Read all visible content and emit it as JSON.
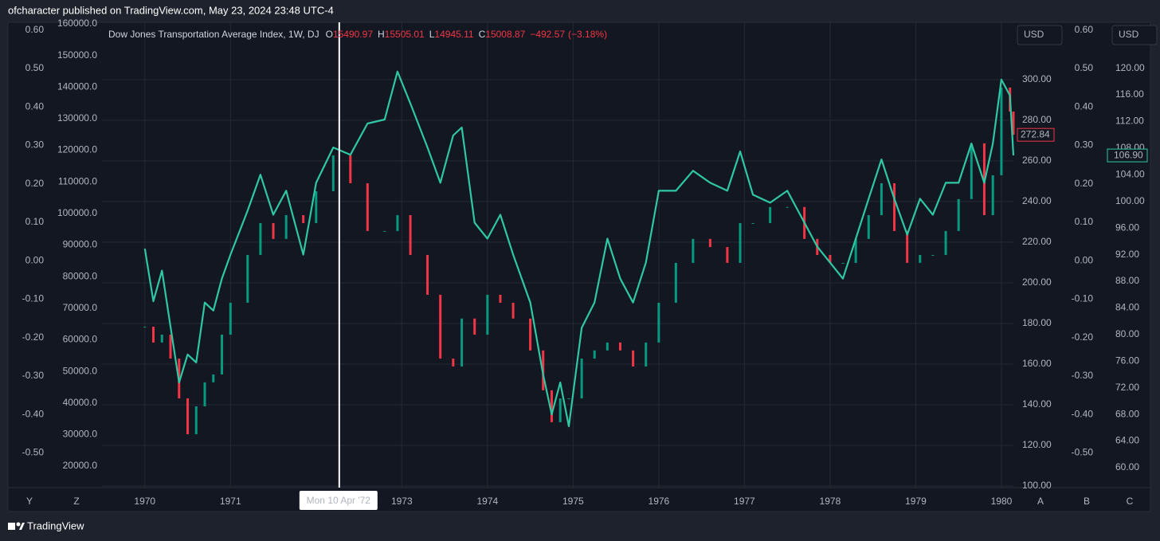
{
  "header": {
    "publisher": "ofcharacter published on TradingView.com, May 23, 2024 23:48 UTC-4"
  },
  "footer": {
    "brand": "TradingView"
  },
  "toolbar": {
    "left": [
      "Y",
      "Z"
    ],
    "right": [
      "A",
      "B",
      "C"
    ],
    "currency": [
      "USD",
      "USD"
    ]
  },
  "chart_data": {
    "type": "candlestick",
    "title": "Dow Jones Transportation Average Index, 1W, DJ",
    "ohlc": [
      {
        "key": "O",
        "value": 15490.97
      },
      {
        "key": "H",
        "value": 15505.01
      },
      {
        "key": "L",
        "value": 14945.11
      },
      {
        "key": "C",
        "value": 15008.87
      }
    ],
    "change": {
      "value": -492.57,
      "label": "−492.57"
    },
    "change_pct": {
      "value": -3.18,
      "label": "(−3.18%)"
    },
    "crosshair": {
      "x": 1972.27,
      "label": "Mon 10 Apr '72"
    },
    "x": [
      1970.0,
      1970.1,
      1970.2,
      1970.3,
      1970.4,
      1970.5,
      1970.6,
      1970.7,
      1970.8,
      1970.9,
      1971.0,
      1971.2,
      1971.35,
      1971.5,
      1971.65,
      1971.85,
      1972.0,
      1972.2,
      1972.4,
      1972.6,
      1972.8,
      1972.95,
      1973.1,
      1973.3,
      1973.45,
      1973.6,
      1973.7,
      1973.85,
      1974.0,
      1974.15,
      1974.3,
      1974.5,
      1974.65,
      1974.75,
      1974.85,
      1974.95,
      1975.1,
      1975.25,
      1975.4,
      1975.55,
      1975.7,
      1975.85,
      1976.0,
      1976.2,
      1976.4,
      1976.6,
      1976.8,
      1976.95,
      1977.1,
      1977.3,
      1977.5,
      1977.7,
      1977.85,
      1978.0,
      1978.15,
      1978.3,
      1978.45,
      1978.6,
      1978.75,
      1978.9,
      1979.05,
      1979.2,
      1979.35,
      1979.5,
      1979.65,
      1979.8,
      1979.9,
      1980.0,
      1980.1,
      1980.14
    ],
    "xlim": [
      1969.5,
      1980.14
    ],
    "xticks": [
      1970,
      1971,
      1973,
      1974,
      1975,
      1976,
      1977,
      1978,
      1979,
      1980
    ],
    "grid": true,
    "series": [
      {
        "type": "candlestick",
        "axis": "y",
        "color": "#089981",
        "down_color": "#f23645",
        "values": [
          178.4,
          170.6,
          174.5,
          162.7,
          143.1,
          125.5,
          139.2,
          151.0,
          154.9,
          174.5,
          190.2,
          213.7,
          229.4,
          221.6,
          233.3,
          229.4,
          245.1,
          262.7,
          249.0,
          225.5,
          225.5,
          233.3,
          213.7,
          194.1,
          162.7,
          158.8,
          182.4,
          174.5,
          194.1,
          190.2,
          182.4,
          166.7,
          147.1,
          131.4,
          143.1,
          143.1,
          162.7,
          166.7,
          170.6,
          166.7,
          158.8,
          170.6,
          190.2,
          209.8,
          221.6,
          217.6,
          209.8,
          229.4,
          229.4,
          237.3,
          237.3,
          221.6,
          213.7,
          209.8,
          209.8,
          221.6,
          233.3,
          249.0,
          225.5,
          209.8,
          213.7,
          213.7,
          225.5,
          241.2,
          268.6,
          233.3,
          252.9,
          296.1,
          284.3,
          272.84
        ]
      },
      {
        "type": "line",
        "axis": "y2",
        "color": "#2fc7a4",
        "last_label": "106.90",
        "values": [
          92.9,
          85.0,
          89.6,
          81.2,
          72.8,
          77.0,
          75.8,
          84.8,
          83.6,
          88.4,
          92.0,
          98.6,
          104.0,
          98.0,
          101.6,
          92.0,
          102.8,
          108.1,
          107.0,
          111.7,
          112.3,
          119.5,
          114.7,
          108.1,
          102.8,
          109.9,
          111.1,
          96.8,
          94.4,
          98.0,
          92.0,
          84.8,
          74.0,
          68.0,
          72.8,
          66.2,
          81.0,
          84.8,
          94.4,
          88.4,
          84.8,
          90.8,
          101.6,
          101.6,
          104.6,
          102.8,
          101.6,
          107.5,
          101.0,
          99.8,
          101.6,
          96.8,
          93.2,
          90.8,
          88.4,
          94.4,
          100.4,
          106.3,
          100.4,
          95.0,
          100.4,
          98.0,
          102.8,
          102.8,
          108.7,
          102.8,
          108.7,
          118.3,
          115.9,
          106.9
        ]
      }
    ],
    "ylim": [
      99.2,
      328.2
    ],
    "yticks": [
      {
        "value": 300,
        "label": "300.00"
      },
      {
        "value": 280,
        "label": "280.00"
      },
      {
        "value": 260,
        "label": "260.00"
      },
      {
        "value": 240,
        "label": "240.00"
      },
      {
        "value": 220,
        "label": "220.00"
      },
      {
        "value": 200,
        "label": "200.00"
      },
      {
        "value": 180,
        "label": "180.00"
      },
      {
        "value": 160,
        "label": "160.00"
      },
      {
        "value": 140,
        "label": "140.00"
      },
      {
        "value": 120,
        "label": "120.00"
      },
      {
        "value": 100,
        "label": "100.00"
      }
    ],
    "y2lim": [
      57.0,
      126.9
    ],
    "y2ticks": [
      {
        "value": 120,
        "label": "120.00"
      },
      {
        "value": 116,
        "label": "116.00"
      },
      {
        "value": 112,
        "label": "112.00"
      },
      {
        "value": 108,
        "label": "108.00"
      },
      {
        "value": 104,
        "label": "104.00"
      },
      {
        "value": 100,
        "label": "100.00"
      },
      {
        "value": 96,
        "label": "96.00"
      },
      {
        "value": 92,
        "label": "92.00"
      },
      {
        "value": 88,
        "label": "88.00"
      },
      {
        "value": 84,
        "label": "84.00"
      },
      {
        "value": 80,
        "label": "80.00"
      },
      {
        "value": 76,
        "label": "76.00"
      },
      {
        "value": 72,
        "label": "72.00"
      },
      {
        "value": 68,
        "label": "68.00"
      },
      {
        "value": 64,
        "label": "64.00"
      },
      {
        "value": 60,
        "label": "60.00"
      }
    ],
    "y3lim": [
      -0.59,
      0.62
    ],
    "y3ticks": [
      {
        "value": 0.6,
        "label": "0.60"
      },
      {
        "value": 0.5,
        "label": "0.50"
      },
      {
        "value": 0.4,
        "label": "0.40"
      },
      {
        "value": 0.3,
        "label": "0.30"
      },
      {
        "value": 0.2,
        "label": "0.20"
      },
      {
        "value": 0.1,
        "label": "0.10"
      },
      {
        "value": 0,
        "label": "0.00"
      },
      {
        "value": -0.1,
        "label": "-0.10"
      },
      {
        "value": -0.2,
        "label": "-0.20"
      },
      {
        "value": -0.3,
        "label": "-0.30"
      },
      {
        "value": -0.4,
        "label": "-0.40"
      },
      {
        "value": -0.5,
        "label": "-0.50"
      }
    ],
    "y4lim": [
      13200,
      160500
    ],
    "y4ticks": [
      {
        "value": 160000,
        "label": "160000.0"
      },
      {
        "value": 150000,
        "label": "150000.0"
      },
      {
        "value": 140000,
        "label": "140000.0"
      },
      {
        "value": 130000,
        "label": "130000.0"
      },
      {
        "value": 120000,
        "label": "120000.0"
      },
      {
        "value": 110000,
        "label": "110000.0"
      },
      {
        "value": 100000,
        "label": "100000.0"
      },
      {
        "value": 90000,
        "label": "90000.0"
      },
      {
        "value": 80000,
        "label": "80000.0"
      },
      {
        "value": 70000,
        "label": "70000.0"
      },
      {
        "value": 60000,
        "label": "60000.0"
      },
      {
        "value": 50000,
        "label": "50000.0"
      },
      {
        "value": 40000,
        "label": "40000.0"
      },
      {
        "value": 30000,
        "label": "30000.0"
      },
      {
        "value": 20000,
        "label": "20000.0"
      }
    ]
  }
}
